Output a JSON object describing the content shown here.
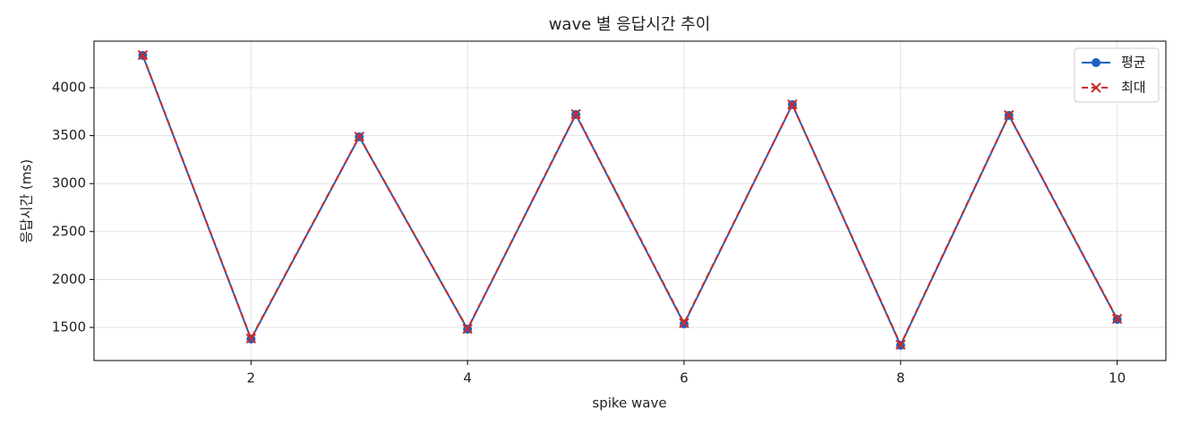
{
  "chart_data": {
    "type": "line",
    "title": "wave 별 응답시간 추이",
    "x_label": "spike wave",
    "y_label": "응답시간 (ms)",
    "x": [
      1,
      2,
      3,
      4,
      5,
      6,
      7,
      8,
      9,
      10
    ],
    "series": [
      {
        "name": "평균",
        "color": "#1f62c0",
        "marker": "circle",
        "dash": "solid",
        "values": [
          4336,
          1379,
          3487,
          1481,
          3720,
          1537,
          3823,
          1313,
          3711,
          1584
        ]
      },
      {
        "name": "최대",
        "color": "#cc2a2a",
        "marker": "x",
        "dash": "dashed",
        "values": [
          4340,
          1385,
          3490,
          1485,
          3725,
          1545,
          3825,
          1320,
          3715,
          1590
        ]
      }
    ],
    "xlim": [
      0.55,
      10.45
    ],
    "ylim": [
      1155,
      4485
    ],
    "xticks": [
      2,
      4,
      6,
      8,
      10
    ],
    "yticks": [
      1500,
      2000,
      2500,
      3000,
      3500,
      4000
    ],
    "grid": true,
    "legend": "upper-right"
  }
}
